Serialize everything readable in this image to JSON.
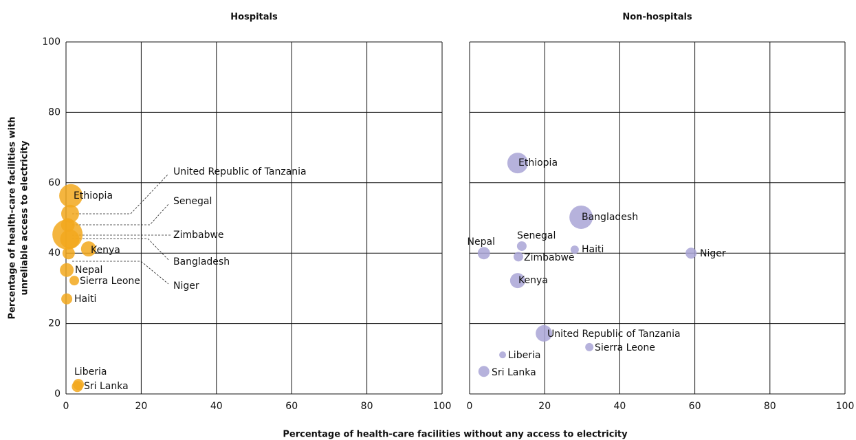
{
  "x_label": "Percentage of health-care facilities without any access to electricity",
  "y_label": [
    "Percentage of health-care facilities with",
    "unreliable access to electricity"
  ],
  "chart_data": [
    {
      "type": "scatter",
      "title": "Hospitals",
      "color": "#f2a81d",
      "names": [
        "Ethiopia",
        "United Republic of Tanzania",
        "Senegal",
        "Zimbabwe",
        "Bangladesh",
        "Niger",
        "Kenya",
        "Nepal",
        "Sierra Leone",
        "Haiti",
        "Liberia",
        "Sri Lanka"
      ],
      "x": [
        1.3,
        1.1,
        0.5,
        0.4,
        1,
        0.7,
        6,
        0.2,
        2.2,
        0.2,
        3.3,
        3
      ],
      "values": [
        56.3,
        51.2,
        48,
        45.3,
        44,
        40,
        41.2,
        35.2,
        32.2,
        27,
        2.7,
        2.1
      ],
      "sizes": [
        289,
        169,
        100,
        484,
        196,
        81,
        121,
        100,
        49,
        64,
        64,
        64
      ],
      "xlim": [
        0,
        100
      ],
      "xticks": [
        0,
        20,
        40,
        60,
        80,
        100
      ],
      "ylim": [
        0,
        100
      ],
      "yticks": [
        0,
        20,
        40,
        60,
        80,
        100
      ],
      "grid": true
    },
    {
      "type": "scatter",
      "title": "Non-hospitals",
      "color": "#a9a4d6",
      "names": [
        "Ethiopia",
        "Bangladesh",
        "Nepal",
        "Senegal",
        "Zimbabwe",
        "Haiti",
        "Niger",
        "Kenya",
        "United Republic of Tanzania",
        "Sierra Leone",
        "Liberia",
        "Sri Lanka"
      ],
      "x": [
        12.8,
        29.7,
        3.8,
        13.9,
        13,
        28,
        59,
        12.8,
        19.8,
        31.9,
        8.8,
        3.8
      ],
      "values": [
        65.6,
        50.2,
        40,
        42,
        39,
        41,
        40,
        32.2,
        17.2,
        13.3,
        11.1,
        6.4
      ],
      "sizes": [
        225,
        289,
        81,
        49,
        49,
        36,
        64,
        121,
        144,
        36,
        25,
        64
      ],
      "xlim": [
        0,
        100
      ],
      "xticks": [
        0,
        20,
        40,
        60,
        80,
        100
      ],
      "ylim": [
        0,
        100
      ],
      "yticks": [
        0,
        20,
        40,
        60,
        80,
        100
      ],
      "grid": true
    }
  ]
}
